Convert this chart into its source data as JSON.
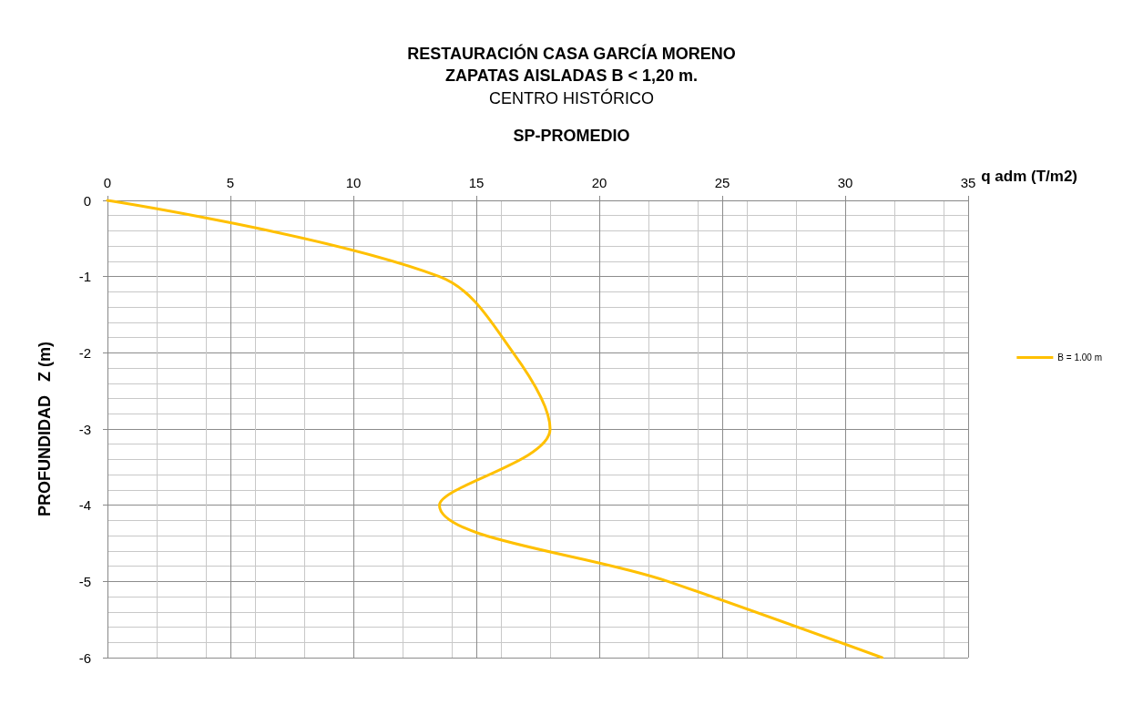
{
  "chart_data": {
    "type": "line",
    "title": "RESTAURACIÓN CASA GARCÍA MORENO\nZAPATAS AISLADAS B < 1,20 m.",
    "subtitle": "CENTRO HISTÓRICO",
    "annotations": [
      "SP-PROMEDIO"
    ],
    "xlabel": "q adm (T/m2)",
    "ylabel": "PROFUNDIDAD   Z (m)",
    "x": [
      0,
      13.5,
      16.5,
      18.0,
      13.5,
      22.8,
      31.5
    ],
    "series": [
      {
        "name": "B = 1.00 m",
        "color": "#ffc000",
        "values": [
          0,
          -1,
          -2,
          -3,
          -4,
          -5,
          -6
        ]
      }
    ],
    "xlim": [
      0,
      35
    ],
    "xticks": [
      0,
      5,
      10,
      15,
      20,
      25,
      30,
      35
    ],
    "ylim": [
      -6,
      0
    ],
    "yticks": [
      -6,
      -5,
      -4,
      -3,
      -2,
      -1,
      0
    ],
    "grid": true,
    "legend": "right",
    "marker": "none",
    "line_style": "solid"
  }
}
